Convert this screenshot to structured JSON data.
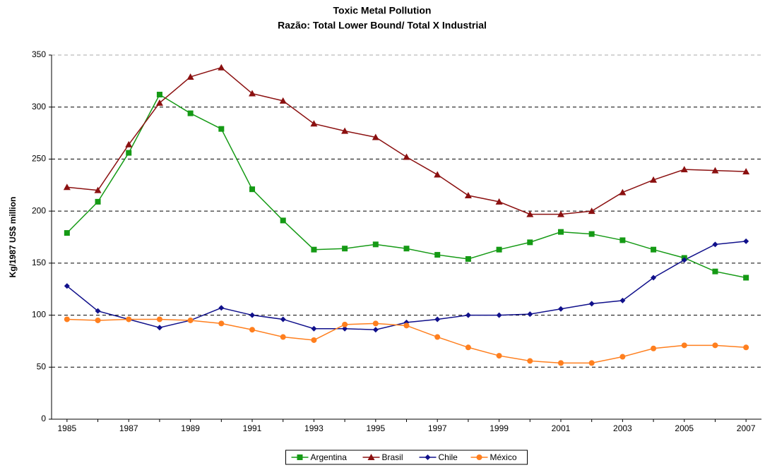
{
  "chart_data": {
    "type": "line",
    "title": "Toxic Metal Pollution",
    "subtitle": "Razão: Total Lower Bound/ Total X Industrial",
    "y_label": "Kg/1987 US$ million",
    "x": [
      1985,
      1986,
      1987,
      1988,
      1989,
      1990,
      1991,
      1992,
      1993,
      1994,
      1995,
      1996,
      1997,
      1998,
      1999,
      2000,
      2001,
      2002,
      2003,
      2004,
      2005,
      2006,
      2007
    ],
    "xlim": [
      1984.5,
      2007.5
    ],
    "xticks": [
      1985,
      1987,
      1989,
      1991,
      1993,
      1995,
      1997,
      1999,
      2001,
      2003,
      2005,
      2007
    ],
    "ylim": [
      0,
      350
    ],
    "yticks": [
      0,
      50,
      100,
      150,
      200,
      250,
      300,
      350
    ],
    "grid": true,
    "legend": "bottom",
    "series": [
      {
        "name": "Argentina",
        "color": "#159a15",
        "marker": "square",
        "values": [
          179,
          209,
          256,
          312,
          294,
          279,
          221,
          191,
          163,
          164,
          168,
          164,
          158,
          154,
          163,
          170,
          180,
          178,
          172,
          163,
          155,
          142,
          136
        ]
      },
      {
        "name": "Brasil",
        "color": "#8b1010",
        "marker": "triangle",
        "values": [
          223,
          220,
          264,
          304,
          329,
          338,
          313,
          306,
          284,
          277,
          271,
          252,
          235,
          215,
          209,
          197,
          197,
          200,
          218,
          230,
          240,
          239,
          238
        ]
      },
      {
        "name": "Chile",
        "color": "#10108b",
        "marker": "diamond",
        "values": [
          128,
          104,
          96,
          88,
          95,
          107,
          100,
          96,
          87,
          87,
          86,
          93,
          96,
          100,
          100,
          101,
          106,
          111,
          114,
          136,
          153,
          168,
          171
        ]
      },
      {
        "name": "México",
        "color": "#ff7f1e",
        "marker": "circle",
        "values": [
          96,
          95,
          96,
          96,
          95,
          92,
          86,
          79,
          76,
          91,
          92,
          90,
          79,
          69,
          61,
          56,
          54,
          54,
          60,
          68,
          71,
          71,
          69
        ]
      }
    ]
  }
}
